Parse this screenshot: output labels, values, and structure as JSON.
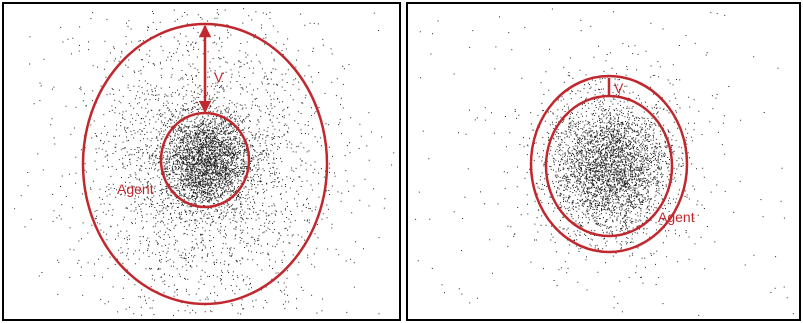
{
  "panels": [
    {
      "velocity_label": "V",
      "agent_label": "Agent"
    },
    {
      "velocity_label": "V",
      "agent_label": "Agent"
    }
  ]
}
